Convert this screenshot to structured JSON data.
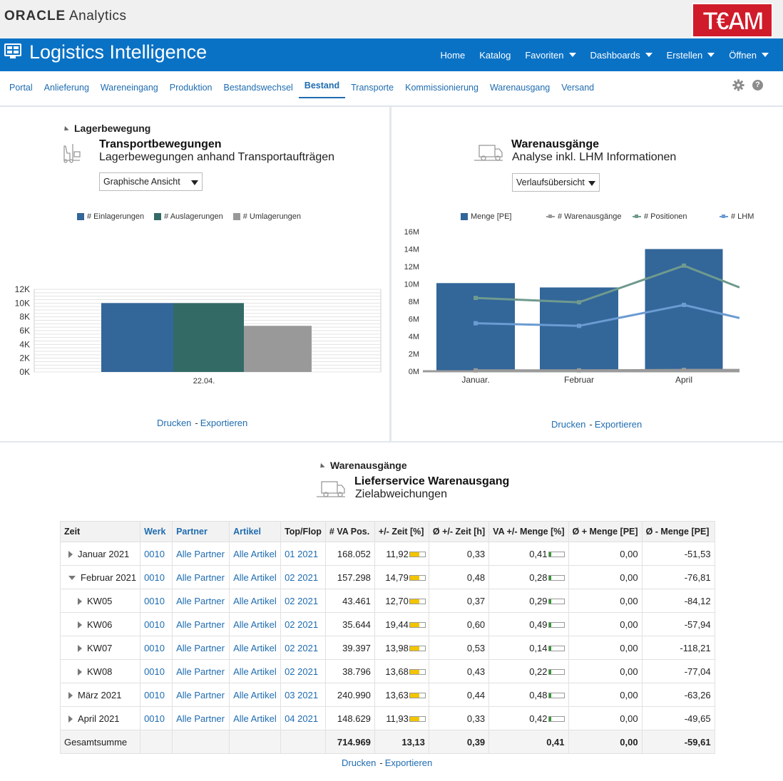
{
  "brand": {
    "oracle": "ORACLE",
    "analytics": "Analytics",
    "team_logo_text": "TEAM"
  },
  "app": {
    "title": "Logistics Intelligence"
  },
  "topnav": [
    {
      "label": "Home",
      "dropdown": false
    },
    {
      "label": "Katalog",
      "dropdown": false
    },
    {
      "label": "Favoriten",
      "dropdown": true
    },
    {
      "label": "Dashboards",
      "dropdown": true
    },
    {
      "label": "Erstellen",
      "dropdown": true
    },
    {
      "label": "Öffnen",
      "dropdown": true
    }
  ],
  "tabs": [
    {
      "label": "Portal",
      "active": false
    },
    {
      "label": "Anlieferung",
      "active": false
    },
    {
      "label": "Wareneingang",
      "active": false
    },
    {
      "label": "Produktion",
      "active": false
    },
    {
      "label": "Bestandswechsel",
      "active": false
    },
    {
      "label": "Bestand",
      "active": true
    },
    {
      "label": "Transporte",
      "active": false
    },
    {
      "label": "Kommissionierung",
      "active": false
    },
    {
      "label": "Warenausgang",
      "active": false
    },
    {
      "label": "Versand",
      "active": false
    }
  ],
  "help_label": "?",
  "left_panel": {
    "section": "Lagerbewegung",
    "title": "Transportbewegungen",
    "subtitle": "Lagerbewegungen anhand Transportaufträgen",
    "view_select": "Graphische Ansicht",
    "print": "Drucken",
    "export": "Exportieren",
    "sep": "-"
  },
  "right_panel": {
    "title": "Warenausgänge",
    "subtitle": "Analyse inkl. LHM Informationen",
    "view_select": "Verlaufsübersicht",
    "print": "Drucken",
    "export": "Exportieren",
    "sep": "-"
  },
  "bottom": {
    "section": "Warenausgänge",
    "title": "Lieferservice Warenausgang",
    "subtitle": "Zielabweichungen",
    "print": "Drucken",
    "export": "Exportieren",
    "sep": "-"
  },
  "colors": {
    "blue": "#336699",
    "teal": "#336a66",
    "gray": "#999999",
    "line_green": "#6f9a8e",
    "line_blue": "#6b9bd2",
    "line_gray": "#9a9a9a",
    "bar_yellow": "#f2c500",
    "bar_green": "#2f9a2f"
  },
  "chart_data": [
    {
      "type": "bar",
      "categories": [
        "22.04."
      ],
      "series": [
        {
          "name": "# Einlagerungen",
          "values": [
            10000
          ]
        },
        {
          "name": "# Auslagerungen",
          "values": [
            10000
          ]
        },
        {
          "name": "# Umlagerungen",
          "values": [
            6700
          ]
        }
      ],
      "ylim": [
        0,
        12000
      ],
      "yticks": [
        "0K",
        "2K",
        "4K",
        "6K",
        "8K",
        "10K",
        "12K"
      ],
      "grid": true,
      "legend": "top"
    },
    {
      "type": "bar",
      "categories": [
        "Januar.",
        "Februar",
        "April"
      ],
      "series": [
        {
          "name": "Menge [PE]",
          "type": "bar",
          "values": [
            10100000,
            9600000,
            14000000
          ]
        },
        {
          "name": "# Warenausgänge",
          "type": "line",
          "values": [
            100000,
            100000,
            150000
          ]
        },
        {
          "name": "# Positionen",
          "type": "line",
          "values": [
            8400000,
            7900000,
            12100000
          ]
        },
        {
          "name": "# LHM",
          "type": "line",
          "values": [
            5500000,
            5200000,
            7600000
          ]
        }
      ],
      "ylim": [
        0,
        16000000
      ],
      "yticks": [
        "0M",
        "2M",
        "4M",
        "6M",
        "8M",
        "10M",
        "12M",
        "14M",
        "16M"
      ],
      "grid": false,
      "legend": "top"
    }
  ],
  "table": {
    "headers": [
      "Zeit",
      "Werk",
      "Partner",
      "Artikel",
      "Top/Flop",
      "# VA Pos.",
      "+/- Zeit [%]",
      "Ø +/- Zeit [h]",
      "VA +/- Menge [%]",
      "Ø + Menge [PE]",
      "Ø - Menge [PE]"
    ],
    "rows": [
      {
        "zeit": "Januar 2021",
        "level": 0,
        "open": false,
        "werk": "0010",
        "partner": "Alle Partner",
        "artikel": "Alle Artikel",
        "topflop": "01 2021",
        "va_pos": "168.052",
        "zeit_pct": "11,92",
        "zeit_bar": 0.6,
        "zeit_h": "0,33",
        "menge_pct": "0,41",
        "menge_bar": 0.15,
        "plus_menge": "0,00",
        "minus_menge": "-51,53"
      },
      {
        "zeit": "Februar 2021",
        "level": 0,
        "open": true,
        "werk": "0010",
        "partner": "Alle Partner",
        "artikel": "Alle Artikel",
        "topflop": "02 2021",
        "va_pos": "157.298",
        "zeit_pct": "14,79",
        "zeit_bar": 0.6,
        "zeit_h": "0,48",
        "menge_pct": "0,28",
        "menge_bar": 0.15,
        "plus_menge": "0,00",
        "minus_menge": "-76,81"
      },
      {
        "zeit": "KW05",
        "level": 1,
        "open": false,
        "werk": "0010",
        "partner": "Alle Partner",
        "artikel": "Alle Artikel",
        "topflop": "02 2021",
        "va_pos": "43.461",
        "zeit_pct": "12,70",
        "zeit_bar": 0.6,
        "zeit_h": "0,37",
        "menge_pct": "0,29",
        "menge_bar": 0.15,
        "plus_menge": "0,00",
        "minus_menge": "-84,12"
      },
      {
        "zeit": "KW06",
        "level": 1,
        "open": false,
        "werk": "0010",
        "partner": "Alle Partner",
        "artikel": "Alle Artikel",
        "topflop": "02 2021",
        "va_pos": "35.644",
        "zeit_pct": "19,44",
        "zeit_bar": 0.6,
        "zeit_h": "0,60",
        "menge_pct": "0,49",
        "menge_bar": 0.15,
        "plus_menge": "0,00",
        "minus_menge": "-57,94"
      },
      {
        "zeit": "KW07",
        "level": 1,
        "open": false,
        "werk": "0010",
        "partner": "Alle Partner",
        "artikel": "Alle Artikel",
        "topflop": "02 2021",
        "va_pos": "39.397",
        "zeit_pct": "13,98",
        "zeit_bar": 0.6,
        "zeit_h": "0,53",
        "menge_pct": "0,14",
        "menge_bar": 0.15,
        "plus_menge": "0,00",
        "minus_menge": "-118,21"
      },
      {
        "zeit": "KW08",
        "level": 1,
        "open": false,
        "werk": "0010",
        "partner": "Alle Partner",
        "artikel": "Alle Artikel",
        "topflop": "02 2021",
        "va_pos": "38.796",
        "zeit_pct": "13,68",
        "zeit_bar": 0.6,
        "zeit_h": "0,43",
        "menge_pct": "0,22",
        "menge_bar": 0.15,
        "plus_menge": "0,00",
        "minus_menge": "-77,04"
      },
      {
        "zeit": "März 2021",
        "level": 0,
        "open": false,
        "werk": "0010",
        "partner": "Alle Partner",
        "artikel": "Alle Artikel",
        "topflop": "03 2021",
        "va_pos": "240.990",
        "zeit_pct": "13,63",
        "zeit_bar": 0.6,
        "zeit_h": "0,44",
        "menge_pct": "0,48",
        "menge_bar": 0.15,
        "plus_menge": "0,00",
        "minus_menge": "-63,26"
      },
      {
        "zeit": "April 2021",
        "level": 0,
        "open": false,
        "werk": "0010",
        "partner": "Alle Partner",
        "artikel": "Alle Artikel",
        "topflop": "04 2021",
        "va_pos": "148.629",
        "zeit_pct": "11,93",
        "zeit_bar": 0.6,
        "zeit_h": "0,33",
        "menge_pct": "0,42",
        "menge_bar": 0.15,
        "plus_menge": "0,00",
        "minus_menge": "-49,65"
      }
    ],
    "total": {
      "label": "Gesamtsumme",
      "va_pos": "714.969",
      "zeit_pct": "13,13",
      "zeit_h": "0,39",
      "menge_pct": "0,41",
      "plus_menge": "0,00",
      "minus_menge": "-59,61"
    }
  }
}
